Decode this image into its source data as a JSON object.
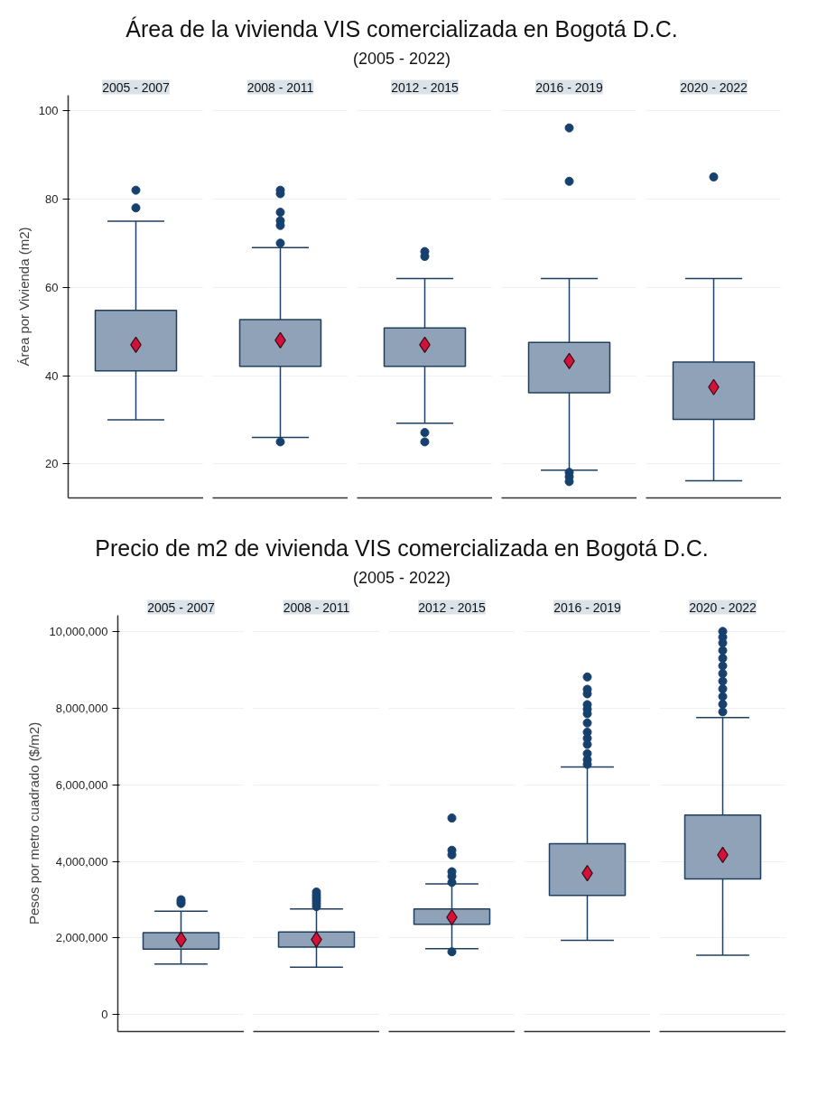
{
  "chart_data": [
    {
      "type": "box",
      "title": "Área de la vivienda VIS comercializada en Bogotá D.C.",
      "subtitle": "(2005 - 2022)",
      "ylabel": "Área por Vivienda (m2)",
      "categories": [
        "2005 - 2007",
        "2008 - 2011",
        "2012 - 2015",
        "2016 - 2019",
        "2020 - 2022"
      ],
      "ylim": [
        12.3,
        103.5
      ],
      "yticks": [
        20,
        40,
        60,
        80,
        100
      ],
      "grid": "y",
      "marker": "circle",
      "series": [
        {
          "color": "#8fa2b8",
          "boxes": [
            {
              "low": 30,
              "q1": 41.1,
              "q3": 54.8,
              "high": 75,
              "mean": 47,
              "outliers": [
                82,
                78
              ]
            },
            {
              "low": 26,
              "q1": 42.1,
              "q3": 52.7,
              "high": 69,
              "mean": 48,
              "outliers": [
                82,
                81.2,
                77,
                75.1,
                74,
                70,
                25
              ]
            },
            {
              "low": 29.2,
              "q1": 42.1,
              "q3": 50.8,
              "high": 62,
              "mean": 47,
              "outliers": [
                68.1,
                67,
                27.1,
                25
              ]
            },
            {
              "low": 18.6,
              "q1": 36.1,
              "q3": 47.5,
              "high": 62,
              "mean": 43.3,
              "outliers": [
                96.1,
                84,
                18.1,
                17.1,
                16
              ]
            },
            {
              "low": 16.2,
              "q1": 30.1,
              "q3": 43.1,
              "high": 62,
              "mean": 37.4,
              "outliers": [
                85
              ]
            }
          ]
        }
      ]
    },
    {
      "type": "box",
      "title": "Precio de m2 de vivienda VIS comercializada en Bogotá D.C.",
      "subtitle": "(2005 - 2022)",
      "ylabel": "Pesos por metro cuadrado ($/m2)",
      "categories": [
        "2005 - 2007",
        "2008 - 2011",
        "2012 - 2015",
        "2016 - 2019",
        "2020 - 2022"
      ],
      "ylim": [
        -440000,
        10420000
      ],
      "yticks": [
        {
          "value": 0,
          "label": "0"
        },
        {
          "value": 2000000,
          "label": "2,000,000"
        },
        {
          "value": 4000000,
          "label": "4,000,000"
        },
        {
          "value": 6000000,
          "label": "6,000,000"
        },
        {
          "value": 8000000,
          "label": "8,000,000"
        },
        {
          "value": 10000000,
          "label": "10,000,000"
        }
      ],
      "grid": "y",
      "marker": "circle",
      "series": [
        {
          "color": "#8fa2b8",
          "boxes": [
            {
              "low": 1320000,
              "q1": 1710000,
              "q3": 2140000,
              "high": 2700000,
              "mean": 1960000,
              "outliers": [
                2900000,
                2950000,
                3000000
              ]
            },
            {
              "low": 1240000,
              "q1": 1760000,
              "q3": 2160000,
              "high": 2760000,
              "mean": 1960000,
              "outliers": [
                2820000,
                2900000,
                2980000,
                3050000,
                3120000,
                3200000
              ]
            },
            {
              "low": 1720000,
              "q1": 2360000,
              "q3": 2760000,
              "high": 3410000,
              "mean": 2540000,
              "outliers": [
                5130000,
                4290000,
                4170000,
                3730000,
                3610000,
                3450000,
                1640000
              ]
            },
            {
              "low": 1940000,
              "q1": 3110000,
              "q3": 4460000,
              "high": 6460000,
              "mean": 3690000,
              "outliers": [
                8810000,
                8490000,
                8370000,
                8090000,
                7970000,
                7850000,
                7610000,
                7370000,
                7210000,
                7050000,
                6810000,
                6650000,
                6530000
              ]
            },
            {
              "low": 1550000,
              "q1": 3540000,
              "q3": 5210000,
              "high": 7750000,
              "mean": 4170000,
              "outliers": [
                10000000,
                9850000,
                9700000,
                9500000,
                9300000,
                9100000,
                8900000,
                8700000,
                8500000,
                8300000,
                8100000,
                7900000
              ]
            }
          ]
        }
      ]
    }
  ]
}
